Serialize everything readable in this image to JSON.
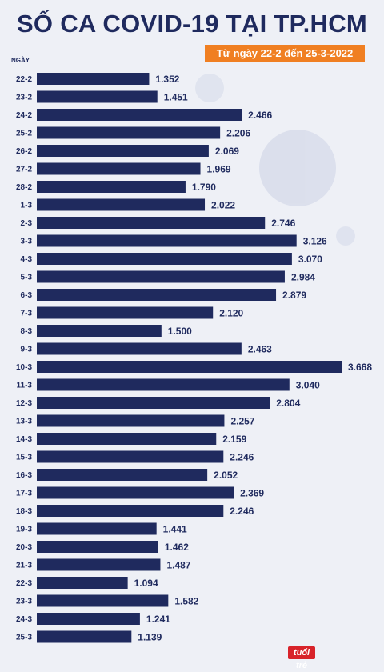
{
  "title": "SỐ CA COVID-19 TẠI TP.HCM",
  "subtitle": "Từ ngày 22-2 đến 25-3-2022",
  "logo_text": "tuổi trẻ",
  "colors": {
    "bar": "#1f2a5e",
    "subtitle_bg": "#f07f22",
    "background": "#eef0f6"
  },
  "chart_data": {
    "type": "bar",
    "orientation": "horizontal",
    "ylabel": "NGÀY",
    "categories": [
      "22-2",
      "23-2",
      "24-2",
      "25-2",
      "26-2",
      "27-2",
      "28-2",
      "1-3",
      "2-3",
      "3-3",
      "4-3",
      "5-3",
      "6-3",
      "7-3",
      "8-3",
      "9-3",
      "10-3",
      "11-3",
      "12-3",
      "13-3",
      "14-3",
      "15-3",
      "16-3",
      "17-3",
      "18-3",
      "19-3",
      "20-3",
      "21-3",
      "22-3",
      "23-3",
      "24-3",
      "25-3"
    ],
    "values": [
      1352,
      1451,
      2466,
      2206,
      2069,
      1969,
      1790,
      2022,
      2746,
      3126,
      3070,
      2984,
      2879,
      2120,
      1500,
      2463,
      3668,
      3040,
      2804,
      2257,
      2159,
      2246,
      2052,
      2369,
      2246,
      1441,
      1462,
      1487,
      1094,
      1582,
      1241,
      1139
    ],
    "value_labels": [
      "1.352",
      "1.451",
      "2.466",
      "2.206",
      "2.069",
      "1.969",
      "1.790",
      "2.022",
      "2.746",
      "3.126",
      "3.070",
      "2.984",
      "2.879",
      "2.120",
      "1.500",
      "2.463",
      "3.668",
      "3.040",
      "2.804",
      "2.257",
      "2.159",
      "2.246",
      "2.052",
      "2.369",
      "2.246",
      "1.441",
      "1.462",
      "1.487",
      "1.094",
      "1.582",
      "1.241",
      "1.139"
    ]
  }
}
